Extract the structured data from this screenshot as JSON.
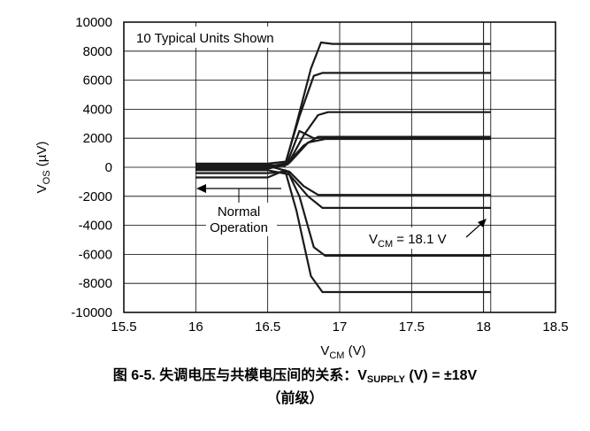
{
  "chart_data": {
    "type": "line",
    "title": "",
    "xlabel": {
      "main": "V",
      "sub": "CM",
      "unit": " (V)"
    },
    "ylabel": {
      "main": "V",
      "sub": "OS",
      "unit": " (µV)"
    },
    "xlim": [
      15.5,
      18.5
    ],
    "ylim": [
      -10000,
      10000
    ],
    "xticks": [
      15.5,
      16,
      16.5,
      17,
      17.5,
      18,
      18.5
    ],
    "yticks": [
      10000,
      8000,
      6000,
      4000,
      2000,
      0,
      -2000,
      -4000,
      -6000,
      -8000,
      -10000
    ],
    "x_tick_labels": [
      "15.5",
      "16",
      "16.5",
      "17",
      "17.5",
      "18",
      "18.5"
    ],
    "y_tick_labels": [
      "10000",
      "8000",
      "6000",
      "4000",
      "2000",
      "0",
      "-2000",
      "-4000",
      "-6000",
      "-8000",
      "-10000"
    ],
    "grid": true,
    "line_color": "#1a1a1a",
    "extra_vertical_lines_x": [
      18.0,
      18.05
    ],
    "annotations": {
      "units_box": "10 Typical Units Shown",
      "normal_line1": "Normal",
      "normal_line2": "Operation",
      "vcm_prefix": "V",
      "vcm_sub": "CM",
      "vcm_value": " = 18.1 V"
    },
    "series": [
      {
        "values": [
          [
            16,
            150
          ],
          [
            16.5,
            150
          ],
          [
            16.62,
            100
          ],
          [
            16.7,
            3000
          ],
          [
            16.8,
            6800
          ],
          [
            16.87,
            8600
          ],
          [
            16.95,
            8500
          ],
          [
            18.05,
            8500
          ]
        ]
      },
      {
        "values": [
          [
            16,
            0
          ],
          [
            16.5,
            0
          ],
          [
            16.62,
            200
          ],
          [
            16.72,
            3500
          ],
          [
            16.82,
            6300
          ],
          [
            16.88,
            6500
          ],
          [
            18.05,
            6500
          ]
        ]
      },
      {
        "values": [
          [
            16,
            -100
          ],
          [
            16.5,
            -100
          ],
          [
            16.64,
            200
          ],
          [
            16.75,
            2200
          ],
          [
            16.85,
            3600
          ],
          [
            16.92,
            3800
          ],
          [
            18.05,
            3800
          ]
        ]
      },
      {
        "values": [
          [
            16,
            50
          ],
          [
            16.5,
            50
          ],
          [
            16.64,
            300
          ],
          [
            16.75,
            1500
          ],
          [
            16.85,
            2100
          ],
          [
            18.05,
            2100
          ]
        ]
      },
      {
        "values": [
          [
            16,
            -50
          ],
          [
            16.5,
            -50
          ],
          [
            16.65,
            300
          ],
          [
            16.78,
            1700
          ],
          [
            16.9,
            1950
          ],
          [
            18.05,
            1950
          ]
        ]
      },
      {
        "values": [
          [
            16,
            100
          ],
          [
            16.5,
            100
          ],
          [
            16.65,
            -300
          ],
          [
            16.75,
            -1300
          ],
          [
            16.85,
            -1900
          ],
          [
            18.05,
            -1900
          ]
        ]
      },
      {
        "values": [
          [
            16,
            -200
          ],
          [
            16.5,
            -200
          ],
          [
            16.65,
            -500
          ],
          [
            16.78,
            -2000
          ],
          [
            16.88,
            -2800
          ],
          [
            18.05,
            -2800
          ]
        ]
      },
      {
        "values": [
          [
            16,
            -400
          ],
          [
            16.5,
            -400
          ],
          [
            16.64,
            -300
          ],
          [
            16.72,
            -2000
          ],
          [
            16.82,
            -5500
          ],
          [
            16.9,
            -6100
          ],
          [
            18.05,
            -6100
          ]
        ]
      },
      {
        "values": [
          [
            16,
            -700
          ],
          [
            16.5,
            -700
          ],
          [
            16.62,
            -200
          ],
          [
            16.7,
            -3000
          ],
          [
            16.8,
            -7500
          ],
          [
            16.88,
            -8600
          ],
          [
            18.05,
            -8600
          ]
        ]
      },
      {
        "values": [
          [
            16,
            250
          ],
          [
            16.5,
            250
          ],
          [
            16.64,
            400
          ],
          [
            16.72,
            2500
          ],
          [
            16.82,
            2000
          ],
          [
            16.9,
            2050
          ],
          [
            18.05,
            2050
          ]
        ]
      }
    ]
  },
  "caption": {
    "prefix": "图 6-5. 失调电压与共模电压间的关系：V",
    "sub": "SUPPLY",
    "suffix": " (V) = ±18V",
    "line2": "（前级）"
  }
}
